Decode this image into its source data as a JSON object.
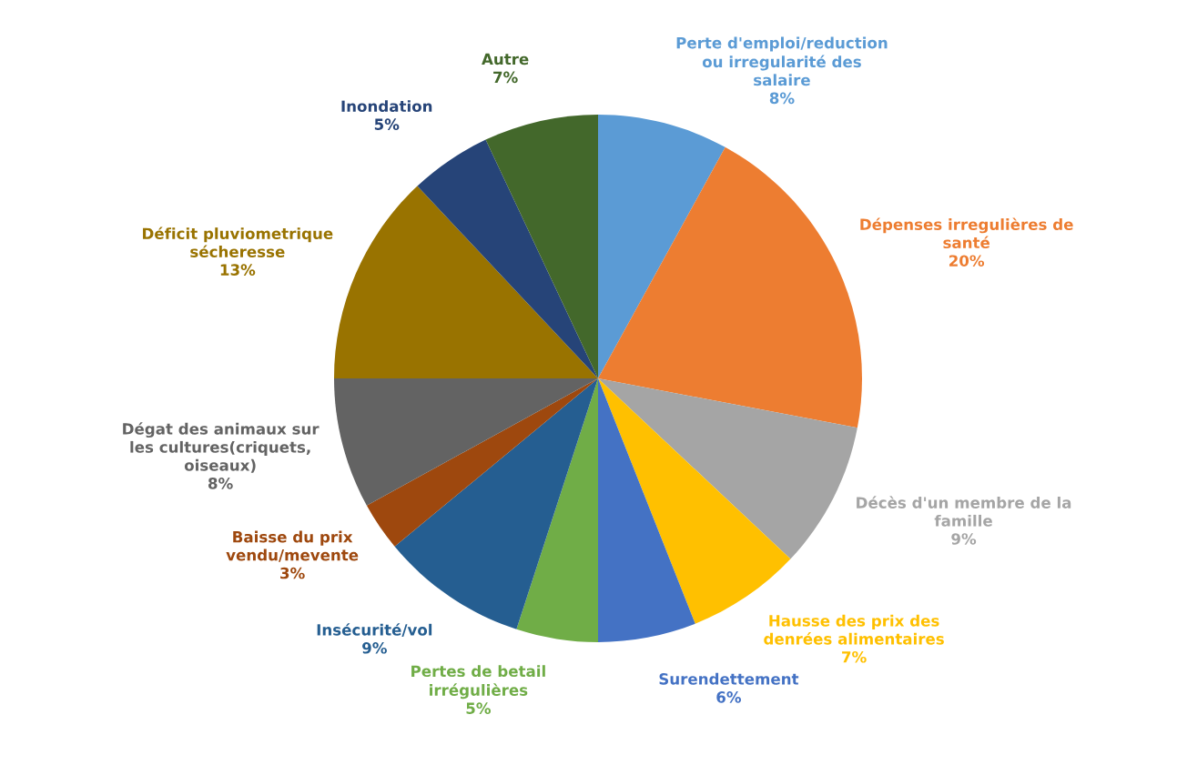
{
  "chart_data": {
    "type": "pie",
    "categories": [
      "Perte d'emploi/reduction ou irregularité des salaire",
      "Dépenses irregulières de santé",
      "Décès d'un membre de la famille",
      "Hausse des prix des denrées alimentaires",
      "Surendettement",
      "Pertes de betail irrégulières",
      "Insécurité/vol",
      "Baisse du prix vendu/mevente",
      "Dégat des animaux sur les cultures(criquets, oiseaux)",
      "Déficit pluviometrique sécheresse",
      "Inondation",
      "Autre"
    ],
    "values": [
      8,
      20,
      9,
      7,
      6,
      5,
      9,
      3,
      8,
      13,
      5,
      7
    ],
    "value_labels": [
      "8%",
      "20%",
      "9%",
      "7%",
      "6%",
      "5%",
      "9%",
      "3%",
      "8%",
      "13%",
      "5%",
      "7%"
    ],
    "colors": [
      "#5b9bd5",
      "#ed7d31",
      "#a5a5a5",
      "#ffc000",
      "#4472c4",
      "#70ad47",
      "#255e91",
      "#9e480e",
      "#636363",
      "#997300",
      "#264478",
      "#43682b"
    ]
  }
}
